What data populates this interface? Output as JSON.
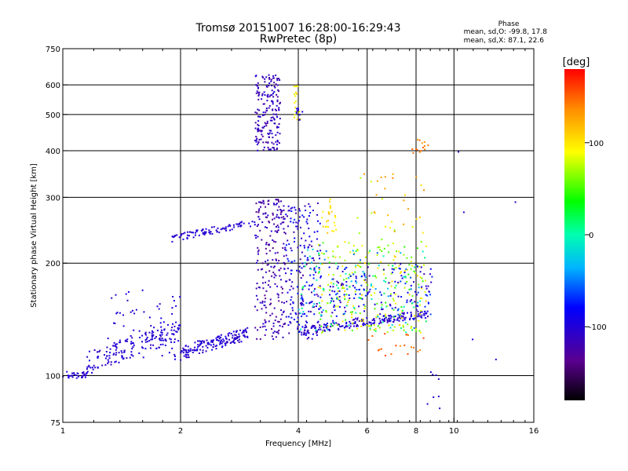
{
  "chart_data": {
    "type": "scatter",
    "title": "Tromsø 20151007 16:28:00-16:29:43",
    "subtitle": "RwPretec (8p)",
    "xlabel": "Frequency [MHz]",
    "ylabel": "Stationary phase Virtual Height [km]",
    "xscale": "log",
    "yscale": "log",
    "xlim": [
      1,
      16
    ],
    "ylim": [
      75,
      750
    ],
    "x_ticks": [
      1,
      2,
      4,
      6,
      8,
      10,
      16
    ],
    "y_ticks": [
      75,
      100,
      200,
      300,
      400,
      500,
      600,
      750
    ],
    "x_grid": [
      2,
      4,
      6,
      8,
      10
    ],
    "y_grid": [
      100,
      200,
      300,
      400,
      500,
      600
    ],
    "grid": true,
    "stats_title": "Phase",
    "stats": [
      {
        "label": "mean, sd,O:",
        "values": "-99.8, 17.8"
      },
      {
        "label": "mean, sd,X:",
        "values": "87.1, 22.6"
      }
    ],
    "colorbar": {
      "label": "[deg]",
      "range": [
        -180,
        180
      ],
      "ticks": [
        100,
        0,
        -100
      ],
      "tick_labels": [
        "100",
        "0",
        "-100"
      ],
      "colormap": "rainbow"
    },
    "clusters": [
      {
        "f": [
          1.0,
          1.15
        ],
        "h": [
          98,
          103
        ],
        "phase": [
          -110,
          -95
        ],
        "count": 30,
        "shape": "line"
      },
      {
        "f": [
          1.15,
          2.0
        ],
        "h": [
          100,
          140
        ],
        "phase": [
          -115,
          -90
        ],
        "count": 160,
        "shape": "band"
      },
      {
        "f": [
          1.3,
          2.0
        ],
        "h": [
          110,
          170
        ],
        "phase": [
          -110,
          -90
        ],
        "count": 60
      },
      {
        "f": [
          2.0,
          3.0
        ],
        "h": [
          110,
          135
        ],
        "phase": [
          -115,
          -90
        ],
        "count": 160,
        "shape": "band"
      },
      {
        "f": [
          1.9,
          3.1
        ],
        "h": [
          228,
          262
        ],
        "phase": [
          -110,
          -95
        ],
        "count": 90,
        "shape": "rising"
      },
      {
        "f": [
          3.1,
          3.6
        ],
        "h": [
          400,
          640
        ],
        "phase": [
          -130,
          -95
        ],
        "count": 190,
        "shape": "pillar"
      },
      {
        "f": [
          3.1,
          3.7
        ],
        "h": [
          125,
          300
        ],
        "phase": [
          -140,
          -100
        ],
        "count": 230
      },
      {
        "f": [
          3.7,
          4.6
        ],
        "h": [
          125,
          290
        ],
        "phase": [
          -130,
          -70
        ],
        "count": 220
      },
      {
        "f": [
          4.0,
          8.6
        ],
        "h": [
          128,
          150
        ],
        "phase": [
          -120,
          -90
        ],
        "count": 180,
        "shape": "rising"
      },
      {
        "f": [
          4.5,
          8.5
        ],
        "h": [
          130,
          230
        ],
        "phase": [
          40,
          110
        ],
        "count": 240
      },
      {
        "f": [
          4.0,
          8.5
        ],
        "h": [
          130,
          220
        ],
        "phase": [
          -60,
          20
        ],
        "count": 120
      },
      {
        "f": [
          4.8,
          8.8
        ],
        "h": [
          140,
          200
        ],
        "phase": [
          -120,
          -60
        ],
        "count": 150
      },
      {
        "f": [
          3.9,
          4.05
        ],
        "h": [
          480,
          600
        ],
        "phase": [
          80,
          110
        ],
        "count": 18
      },
      {
        "f": [
          3.95,
          4.1
        ],
        "h": [
          480,
          520
        ],
        "phase": [
          -100,
          -90
        ],
        "count": 10
      },
      {
        "f": [
          7.8,
          8.6
        ],
        "h": [
          390,
          430
        ],
        "phase": [
          130,
          150
        ],
        "count": 14
      },
      {
        "f": [
          4.6,
          5.0
        ],
        "h": [
          240,
          300
        ],
        "phase": [
          90,
          120
        ],
        "count": 25
      },
      {
        "f": [
          5.5,
          8.5
        ],
        "h": [
          220,
          350
        ],
        "phase": [
          60,
          140
        ],
        "count": 35
      },
      {
        "f": [
          6.0,
          8.6
        ],
        "h": [
          110,
          130
        ],
        "phase": [
          130,
          160
        ],
        "count": 20
      },
      {
        "f": [
          8.5,
          9.2
        ],
        "h": [
          78,
          110
        ],
        "phase": [
          -110,
          -100
        ],
        "count": 8
      },
      {
        "f": [
          10,
          15
        ],
        "h": [
          105,
          420
        ],
        "phase": [
          -110,
          -95
        ],
        "count": 5
      }
    ],
    "note_clusters": "Scatter echoes grouped by region; x in MHz, y in km, phase in degrees (color)."
  }
}
